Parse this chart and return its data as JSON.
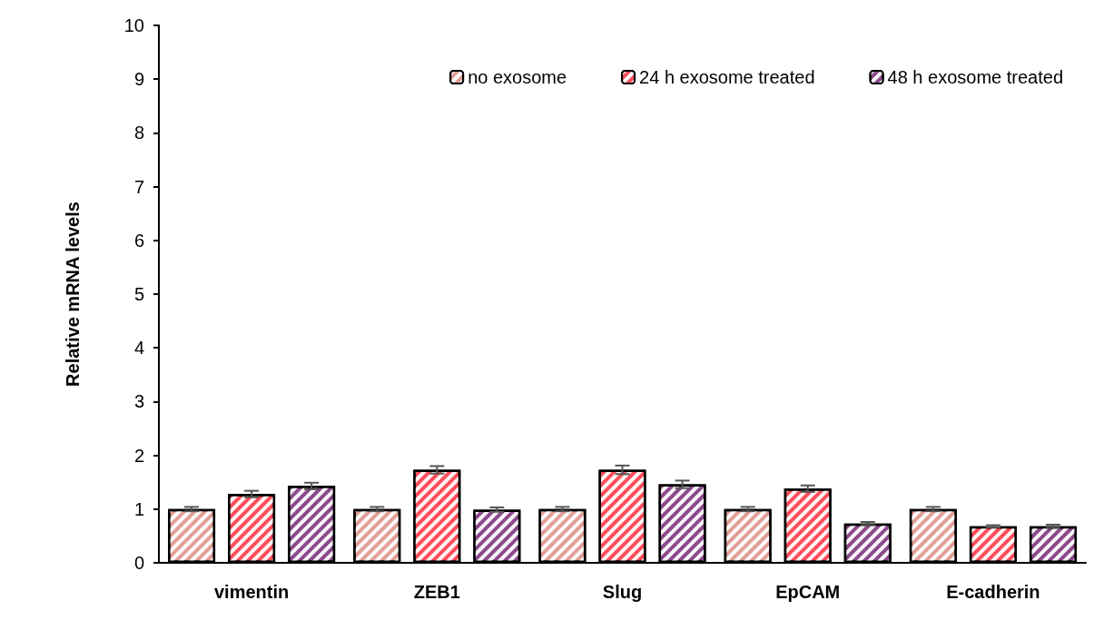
{
  "chart_data": {
    "type": "bar",
    "ylabel": "Relative mRNA levels",
    "categories": [
      "vimentin",
      "ZEB1",
      "Slug",
      "EpCAM",
      "E-cadherin"
    ],
    "series": [
      {
        "name": "no exosome",
        "color": "#e29f96",
        "values": [
          1.0,
          1.0,
          1.0,
          1.0,
          1.0
        ],
        "errors": [
          0.04,
          0.04,
          0.04,
          0.04,
          0.04
        ]
      },
      {
        "name": "24 h exosome treated",
        "color": "#ff4d5a",
        "values": [
          1.28,
          1.73,
          1.73,
          1.38,
          0.68
        ],
        "errors": [
          0.06,
          0.07,
          0.08,
          0.06,
          0.02
        ]
      },
      {
        "name": "48 h exosome treated",
        "color": "#8b4a8c",
        "values": [
          1.43,
          0.99,
          1.46,
          0.73,
          0.68
        ],
        "errors": [
          0.06,
          0.04,
          0.07,
          0.03,
          0.03
        ]
      }
    ],
    "ylim": [
      0,
      10
    ],
    "yticks": [
      0,
      1,
      2,
      3,
      4,
      5,
      6,
      7,
      8,
      9,
      10
    ],
    "grid": false,
    "legend": "top right"
  }
}
